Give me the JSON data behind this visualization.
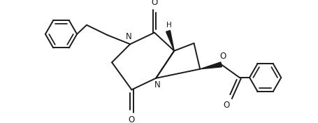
{
  "bg_color": "#ffffff",
  "line_color": "#1a1a1a",
  "line_width": 1.4,
  "fig_width": 4.55,
  "fig_height": 1.76,
  "dpi": 100,
  "xlim": [
    -2.2,
    7.8
  ],
  "ylim": [
    -1.6,
    2.0
  ]
}
